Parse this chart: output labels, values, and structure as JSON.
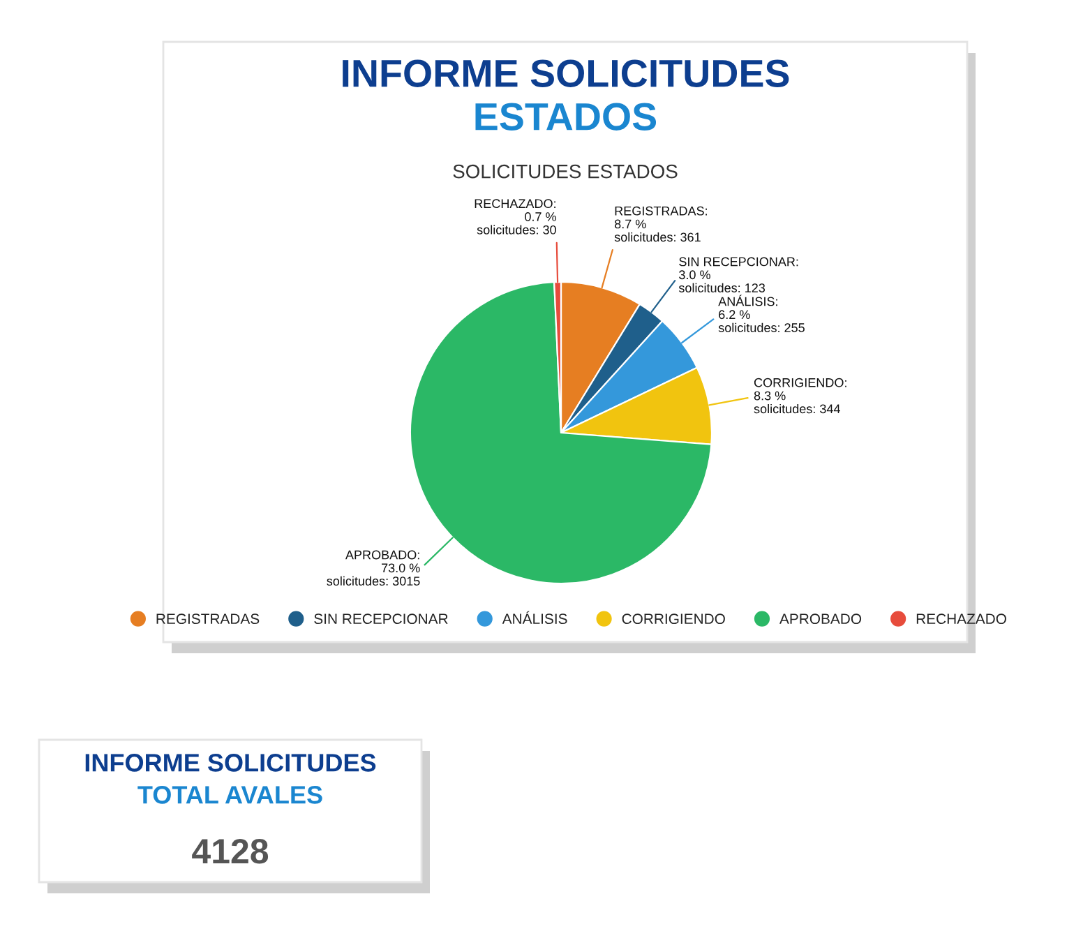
{
  "chart_data": [
    {
      "type": "pie",
      "title": "INFORME SOLICITUDES",
      "subtitle": "ESTADOS",
      "annotations": [
        "SOLICITUDES ESTADOS"
      ],
      "categories": [
        "REGISTRADAS",
        "SIN RECEPCIONAR",
        "ANÁLISIS",
        "CORRIGIENDO",
        "APROBADO",
        "RECHAZADO"
      ],
      "values": [
        361,
        123,
        255,
        344,
        3015,
        30
      ],
      "colors": [
        "#e67e22",
        "#1f5f8b",
        "#3498db",
        "#f1c40f",
        "#2bb866",
        "#e74c3c"
      ],
      "value_labels": [
        "REGISTRADAS:\n8.7 %\nsolicitudes: 361",
        "SIN RECEPCIONAR:\n3.0 %\nsolicitudes: 123",
        "ANÁLISIS:\n6.2 %\nsolicitudes: 255",
        "CORRIGIENDO:\n8.3 %\nsolicitudes: 344",
        "APROBADO:\n73.0 %\nsolicitudes: 3015",
        "RECHAZADO:\n0.7 %\nsolicitudes: 30"
      ],
      "legend": "bottom"
    },
    {
      "type": "other",
      "title": "INFORME SOLICITUDES",
      "subtitle": "TOTAL AVALES",
      "annotations": [
        "4128"
      ]
    }
  ]
}
